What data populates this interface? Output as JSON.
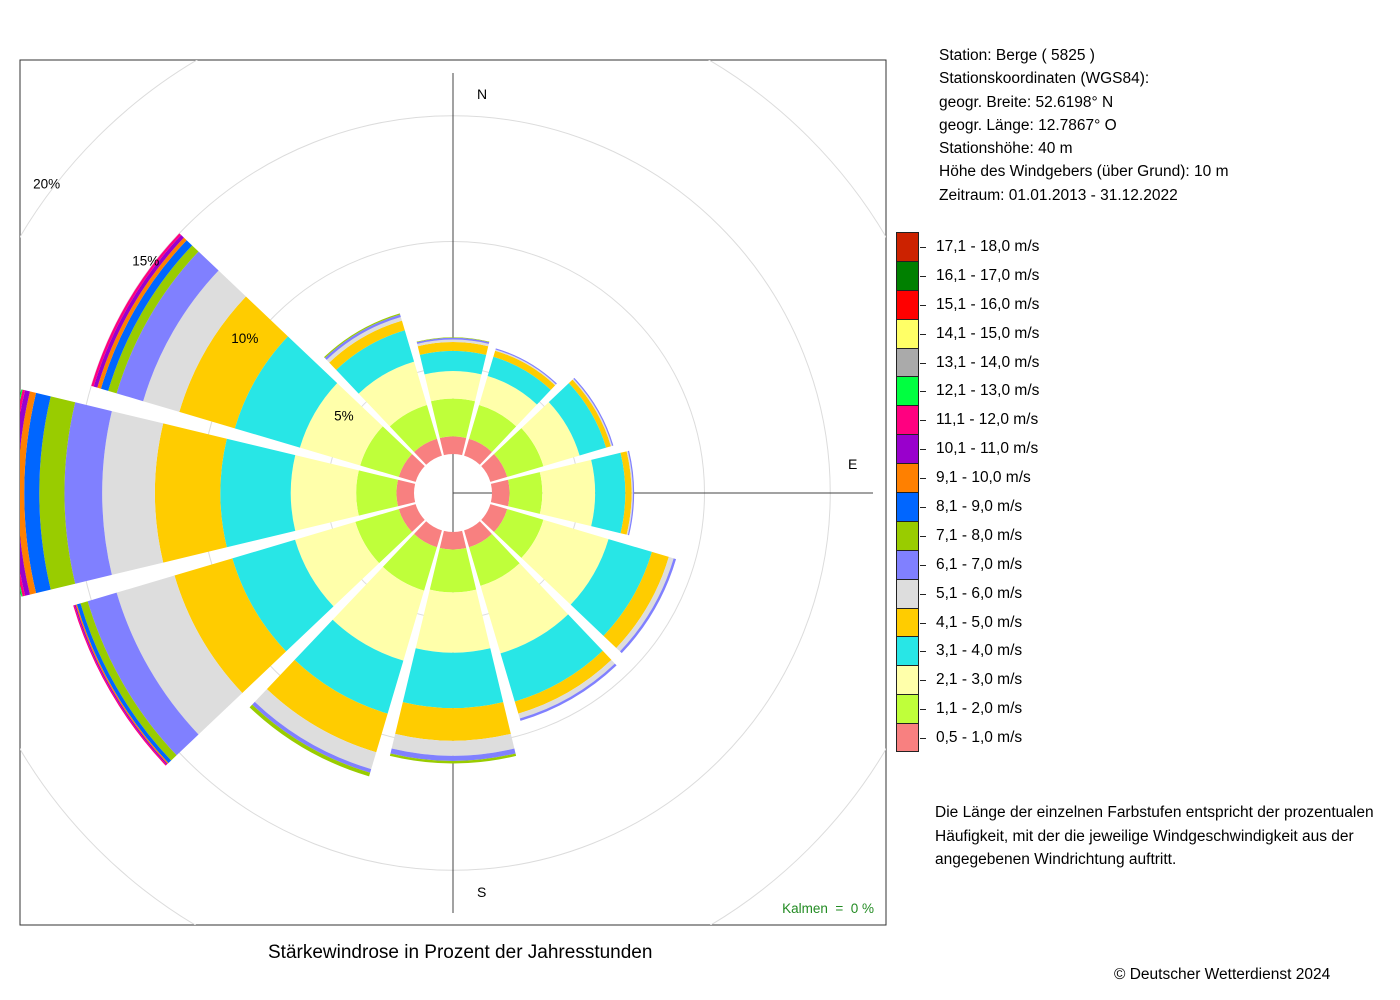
{
  "chart_data": {
    "type": "wind-rose",
    "title": "Stärkewindrose in Prozent der Jahresstunden",
    "unit": "%",
    "directions": [
      "N",
      "NNE",
      "ENE",
      "E",
      "ESE",
      "SSE",
      "S",
      "SSW",
      "WSW",
      "W",
      "WNW",
      "NNW"
    ],
    "direction_labels": {
      "N": "N",
      "E": "E",
      "S": "S"
    },
    "ring_labels": [
      "5%",
      "10%",
      "15%",
      "20%"
    ],
    "rings": [
      5,
      10,
      15,
      20
    ],
    "rmax": 16.7,
    "calm_radius": 1.55,
    "speed_classes": [
      {
        "label": "0,5 - 1,0 m/s",
        "color": "#F88080"
      },
      {
        "label": "1,1 - 2,0 m/s",
        "color": "#BFFF3A"
      },
      {
        "label": "2,1 - 3,0 m/s",
        "color": "#FFFFAA"
      },
      {
        "label": "3,1 - 4,0 m/s",
        "color": "#28E6E6"
      },
      {
        "label": "4,1 - 5,0 m/s",
        "color": "#FFCC00"
      },
      {
        "label": "5,1 - 6,0 m/s",
        "color": "#DDDDDD"
      },
      {
        "label": "6,1 - 7,0 m/s",
        "color": "#8080FF"
      },
      {
        "label": "7,1 - 8,0 m/s",
        "color": "#99CC00"
      },
      {
        "label": "8,1 - 9,0 m/s",
        "color": "#0066FF"
      },
      {
        "label": "9,1 - 10,0 m/s",
        "color": "#FF8000"
      },
      {
        "label": "10,1 - 11,0 m/s",
        "color": "#9900CC"
      },
      {
        "label": "11,1 - 12,0 m/s",
        "color": "#FF0080"
      },
      {
        "label": "12,1 - 13,0 m/s",
        "color": "#00FF40"
      },
      {
        "label": "13,1 - 14,0 m/s",
        "color": "#AAAAAA"
      },
      {
        "label": "14,1 - 15,0 m/s",
        "color": "#FFFF66"
      },
      {
        "label": "15,1 - 16,0 m/s",
        "color": "#FF0000"
      },
      {
        "label": "16,1 - 17,0 m/s",
        "color": "#008000"
      },
      {
        "label": "17,1 - 18,0 m/s",
        "color": "#CC2200"
      }
    ],
    "series": [
      {
        "direction": "N",
        "values": [
          0.7,
          1.5,
          1.1,
          0.8,
          0.35,
          0.1,
          0.07,
          0.02,
          0,
          0,
          0,
          0,
          0,
          0,
          0,
          0,
          0,
          0
        ]
      },
      {
        "direction": "NNE",
        "values": [
          0.7,
          1.4,
          1.2,
          0.8,
          0.25,
          0.05,
          0.05,
          0,
          0,
          0,
          0,
          0,
          0,
          0,
          0,
          0,
          0,
          0
        ]
      },
      {
        "direction": "ENE",
        "values": [
          0.7,
          1.5,
          1.5,
          1.1,
          0.2,
          0.05,
          0.05,
          0,
          0,
          0,
          0,
          0,
          0,
          0,
          0,
          0,
          0,
          0
        ]
      },
      {
        "direction": "E",
        "values": [
          0.7,
          1.3,
          2.1,
          1.2,
          0.25,
          0.05,
          0.05,
          0,
          0,
          0,
          0,
          0,
          0,
          0,
          0,
          0,
          0,
          0
        ]
      },
      {
        "direction": "ESE",
        "values": [
          0.7,
          1.5,
          2.7,
          1.8,
          0.7,
          0.2,
          0.1,
          0,
          0,
          0,
          0,
          0,
          0,
          0,
          0,
          0,
          0,
          0
        ]
      },
      {
        "direction": "SSE",
        "values": [
          0.7,
          1.6,
          2.8,
          2.0,
          0.5,
          0.2,
          0.1,
          0,
          0,
          0,
          0,
          0,
          0,
          0,
          0,
          0,
          0,
          0
        ]
      },
      {
        "direction": "S",
        "values": [
          0.7,
          1.7,
          2.4,
          2.2,
          1.3,
          0.6,
          0.2,
          0.1,
          0,
          0,
          0,
          0,
          0,
          0,
          0,
          0,
          0,
          0
        ]
      },
      {
        "direction": "SSW",
        "values": [
          0.7,
          1.8,
          2.9,
          2.2,
          1.6,
          0.7,
          0.15,
          0.15,
          0,
          0,
          0,
          0,
          0,
          0,
          0,
          0,
          0,
          0
        ]
      },
      {
        "direction": "WSW",
        "values": [
          0.7,
          1.8,
          2.5,
          2.6,
          2.4,
          2.4,
          1.2,
          0.3,
          0.15,
          0.05,
          0.05,
          0.05,
          0,
          0,
          0,
          0,
          0,
          0
        ]
      },
      {
        "direction": "W",
        "values": [
          0.7,
          1.6,
          2.6,
          2.8,
          2.6,
          2.1,
          1.5,
          1.0,
          0.6,
          0.25,
          0.2,
          0.1,
          0.05,
          0,
          0,
          0,
          0,
          0
        ]
      },
      {
        "direction": "WNW",
        "values": [
          0.7,
          1.6,
          2.5,
          2.7,
          2.3,
          1.5,
          1.1,
          0.35,
          0.3,
          0.15,
          0.15,
          0.1,
          0,
          0,
          0,
          0,
          0,
          0
        ]
      },
      {
        "direction": "NNW",
        "values": [
          0.7,
          1.4,
          1.8,
          1.3,
          0.4,
          0.15,
          0.1,
          0.05,
          0,
          0,
          0,
          0,
          0,
          0,
          0,
          0,
          0,
          0
        ]
      }
    ],
    "calm_label": "Kalmen  =  0 %"
  },
  "station": {
    "line1": "Station:  Berge  ( 5825 )",
    "line2": "Stationskoordinaten (WGS84):",
    "line3": "geogr. Breite: 52.6198° N",
    "line4": "geogr. Länge: 12.7867° O",
    "line5": "Stationshöhe: 40 m",
    "line6": "Höhe des Windgebers (über Grund): 10 m",
    "line7": "Zeitraum: 01.01.2013 - 31.12.2022"
  },
  "note": "Die Länge der einzelnen Farbstufen entspricht der prozentualen Häufigkeit, mit der die jeweilige Windgeschwindigkeit aus der angegebenen Windrichtung auftritt.",
  "copyright": "© Deutscher Wetterdienst  2024"
}
